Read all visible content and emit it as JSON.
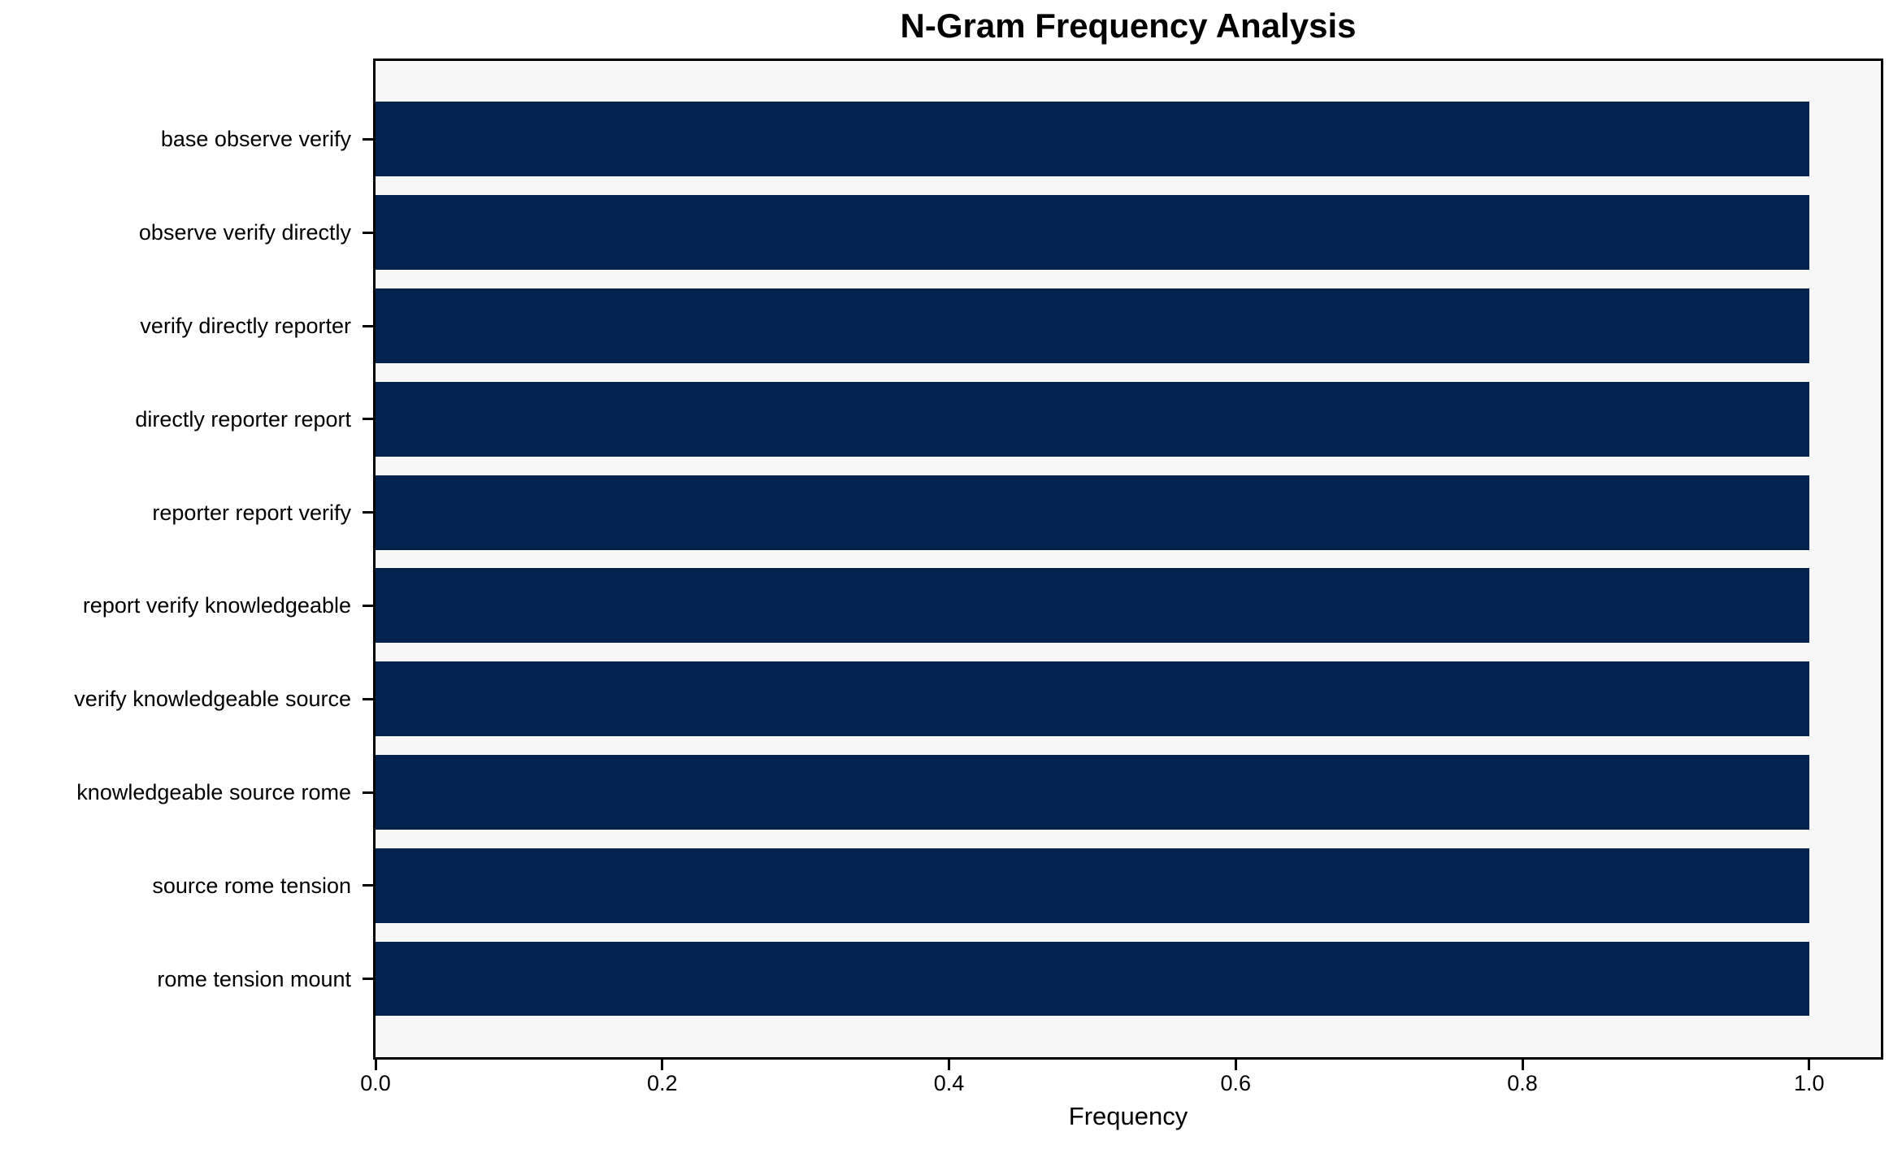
{
  "chart_data": {
    "type": "bar",
    "orientation": "horizontal",
    "title": "N-Gram Frequency Analysis",
    "xlabel": "Frequency",
    "ylabel": "",
    "categories": [
      "base observe verify",
      "observe verify directly",
      "verify directly reporter",
      "directly reporter report",
      "reporter report verify",
      "report verify knowledgeable",
      "verify knowledgeable source",
      "knowledgeable source rome",
      "source rome tension",
      "rome tension mount"
    ],
    "values": [
      1.0,
      1.0,
      1.0,
      1.0,
      1.0,
      1.0,
      1.0,
      1.0,
      1.0,
      1.0
    ],
    "xticks": [
      0.0,
      0.2,
      0.4,
      0.6,
      0.8,
      1.0
    ],
    "xlim": [
      0,
      1.05
    ],
    "grid": false,
    "legend": null,
    "colors": {
      "bar": "#02234D",
      "plot_background": "#F7F7F7",
      "figure_background": "#FFFFFF",
      "axis": "#000000",
      "text": "#000000"
    }
  }
}
